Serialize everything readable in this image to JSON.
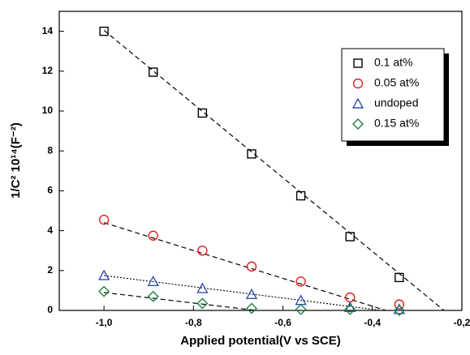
{
  "chart_data": {
    "type": "scatter",
    "x_label": "Applied potential(V vs SCE)",
    "y_label": "1/C² 10¹⁴(F⁻²)",
    "xlim": [
      -1.1,
      -0.2
    ],
    "ylim": [
      0,
      15
    ],
    "xticks": [
      {
        "value": -1.0,
        "label": "-1,0"
      },
      {
        "value": -0.8,
        "label": "-0,8"
      },
      {
        "value": -0.6,
        "label": "-0,6"
      },
      {
        "value": -0.4,
        "label": "-0,4"
      },
      {
        "value": -0.2,
        "label": "-0,2"
      }
    ],
    "yticks": [
      0,
      2,
      4,
      6,
      8,
      10,
      12,
      14
    ],
    "legend": "upper right",
    "series": [
      {
        "name": "0.1 at%",
        "color": "#000000",
        "marker": "square",
        "x": [
          -1.0,
          -0.89,
          -0.78,
          -0.67,
          -0.56,
          -0.45,
          -0.34
        ],
        "values": [
          14.0,
          11.95,
          9.9,
          7.85,
          5.75,
          3.7,
          1.65
        ],
        "fit_x": [
          -1.0,
          -0.24
        ],
        "fit_y": [
          14.05,
          0
        ],
        "fit_style": "dashed"
      },
      {
        "name": "0.05 at%",
        "color": "#e02020",
        "marker": "circle",
        "x": [
          -1.0,
          -0.89,
          -0.78,
          -0.67,
          -0.56,
          -0.45,
          -0.34
        ],
        "values": [
          4.55,
          3.75,
          3.0,
          2.2,
          1.45,
          0.65,
          0.3
        ],
        "fit_x": [
          -1.0,
          -0.37
        ],
        "fit_y": [
          4.4,
          0
        ],
        "fit_style": "dashed"
      },
      {
        "name": "undoped",
        "color": "#3050b0",
        "marker": "triangle",
        "x": [
          -1.0,
          -0.89,
          -0.78,
          -0.67,
          -0.56,
          -0.45,
          -0.34
        ],
        "values": [
          1.75,
          1.45,
          1.1,
          0.8,
          0.5,
          0.15,
          0.05
        ],
        "fit_x": [
          -1.0,
          -0.38
        ],
        "fit_y": [
          1.75,
          0
        ],
        "fit_style": "dotted"
      },
      {
        "name": "0.15 at%",
        "color": "#208040",
        "marker": "diamond",
        "x": [
          -1.0,
          -0.89,
          -0.78,
          -0.67,
          -0.56,
          -0.45,
          -0.34
        ],
        "values": [
          0.95,
          0.7,
          0.35,
          0.1,
          0.05,
          0.05,
          0.0
        ],
        "fit_x": [
          -1.0,
          -0.66
        ],
        "fit_y": [
          0.9,
          0
        ],
        "fit_style": "dashed"
      }
    ]
  }
}
